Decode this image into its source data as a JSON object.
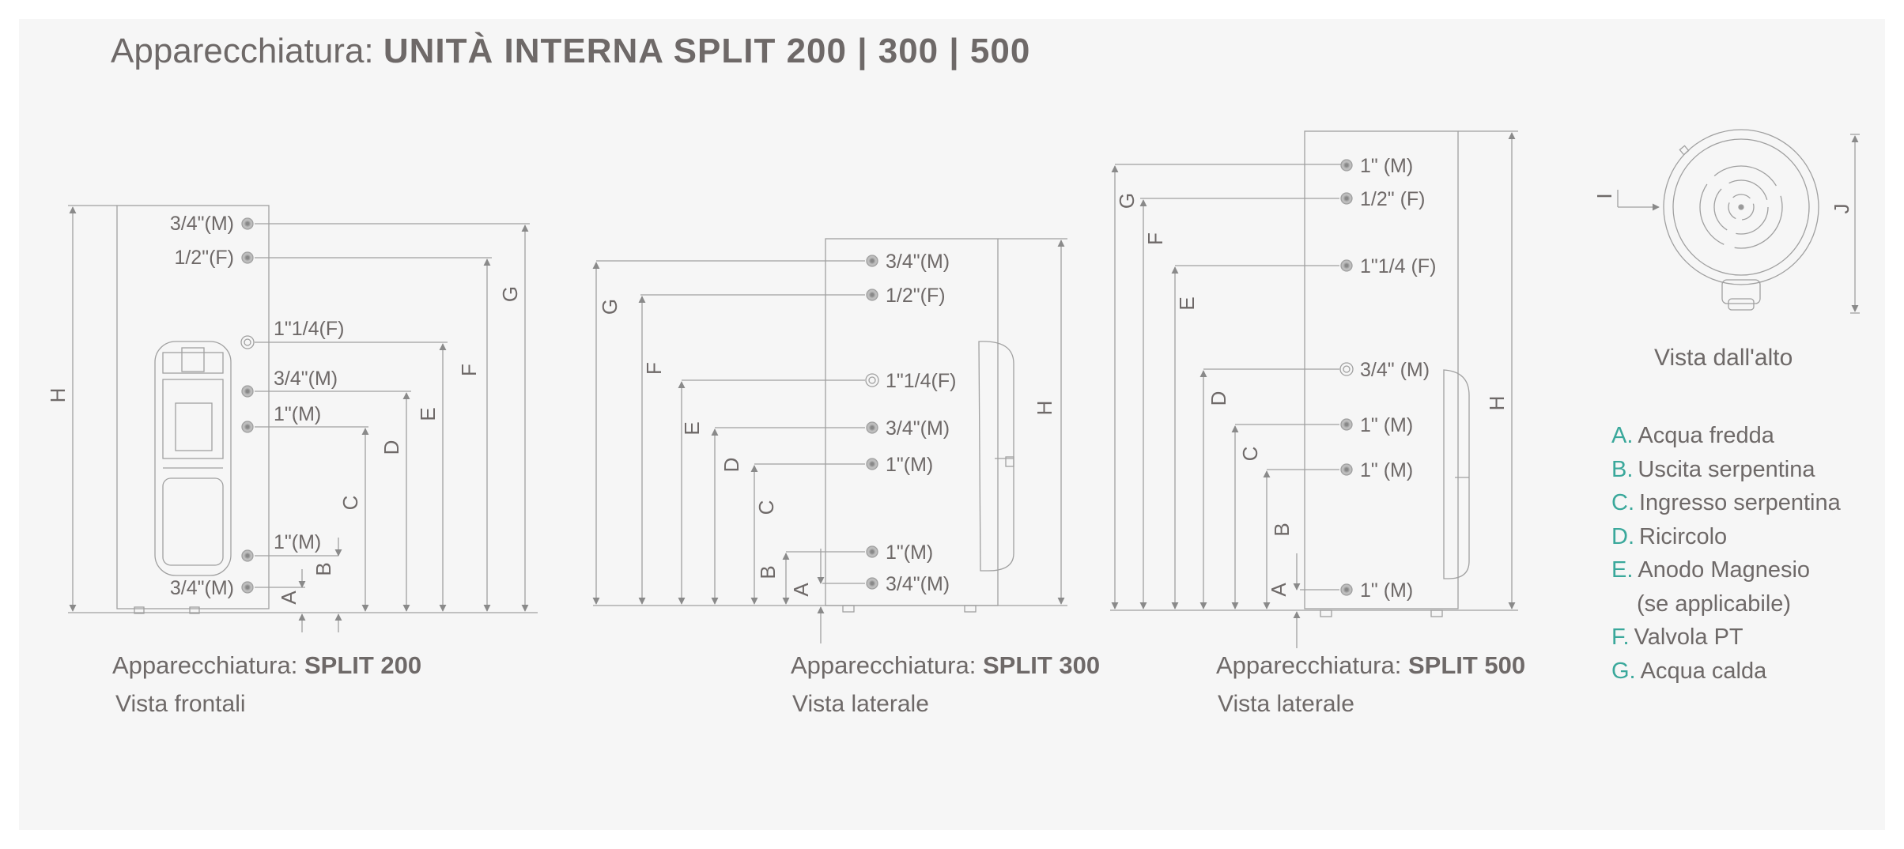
{
  "title": {
    "prefix": "Apparecchiatura: ",
    "model": "UNITÀ INTERNA SPLIT 200 | 300 | 500"
  },
  "captions": {
    "split200": {
      "prefix": "Apparecchiatura: ",
      "model": "SPLIT 200",
      "view": "Vista frontali"
    },
    "split300": {
      "prefix": "Apparecchiatura: ",
      "model": "SPLIT 300",
      "view": "Vista laterale"
    },
    "split500": {
      "prefix": "Apparecchiatura: ",
      "model": "SPLIT 500",
      "view": "Vista laterale"
    },
    "top_view": "Vista dall'alto"
  },
  "split200_labels": [
    "3/4\"(M)",
    "1/2\"(F)",
    "1\"1/4(F)",
    "3/4\"(M)",
    "1\"(M)",
    "1\"(M)",
    "3/4\"(M)"
  ],
  "split300_labels": [
    "3/4\"(M)",
    "1/2\"(F)",
    "1\"1/4(F)",
    "3/4\"(M)",
    "1\"(M)",
    "1\"(M)",
    "3/4\"(M)"
  ],
  "split500_labels": [
    "1\" (M)",
    "1/2\" (F)",
    "1\"1/4 (F)",
    "3/4\" (M)",
    "1\" (M)",
    "1\" (M)",
    "1\" (M)"
  ],
  "dimension_letters": {
    "A": "A",
    "B": "B",
    "C": "C",
    "D": "D",
    "E": "E",
    "F": "F",
    "G": "G",
    "H": "H",
    "I": "I",
    "J": "J"
  },
  "legend": [
    {
      "letter": "A.",
      "text": "Acqua fredda"
    },
    {
      "letter": "B.",
      "text": "Uscita serpentina"
    },
    {
      "letter": "C.",
      "text": "Ingresso serpentina"
    },
    {
      "letter": "D.",
      "text": "Ricircolo"
    },
    {
      "letter": "E.",
      "text": "Anodo Magnesio"
    },
    {
      "letter": "",
      "text": "(se applicabile)"
    },
    {
      "letter": "F.",
      "text": "Valvola PT"
    },
    {
      "letter": "G.",
      "text": "Acqua calda"
    }
  ],
  "colors": {
    "panel": "#f6f6f6",
    "text": "#6e6968",
    "line": "#9a9a9a",
    "legend_letter": "#3aa89b"
  }
}
